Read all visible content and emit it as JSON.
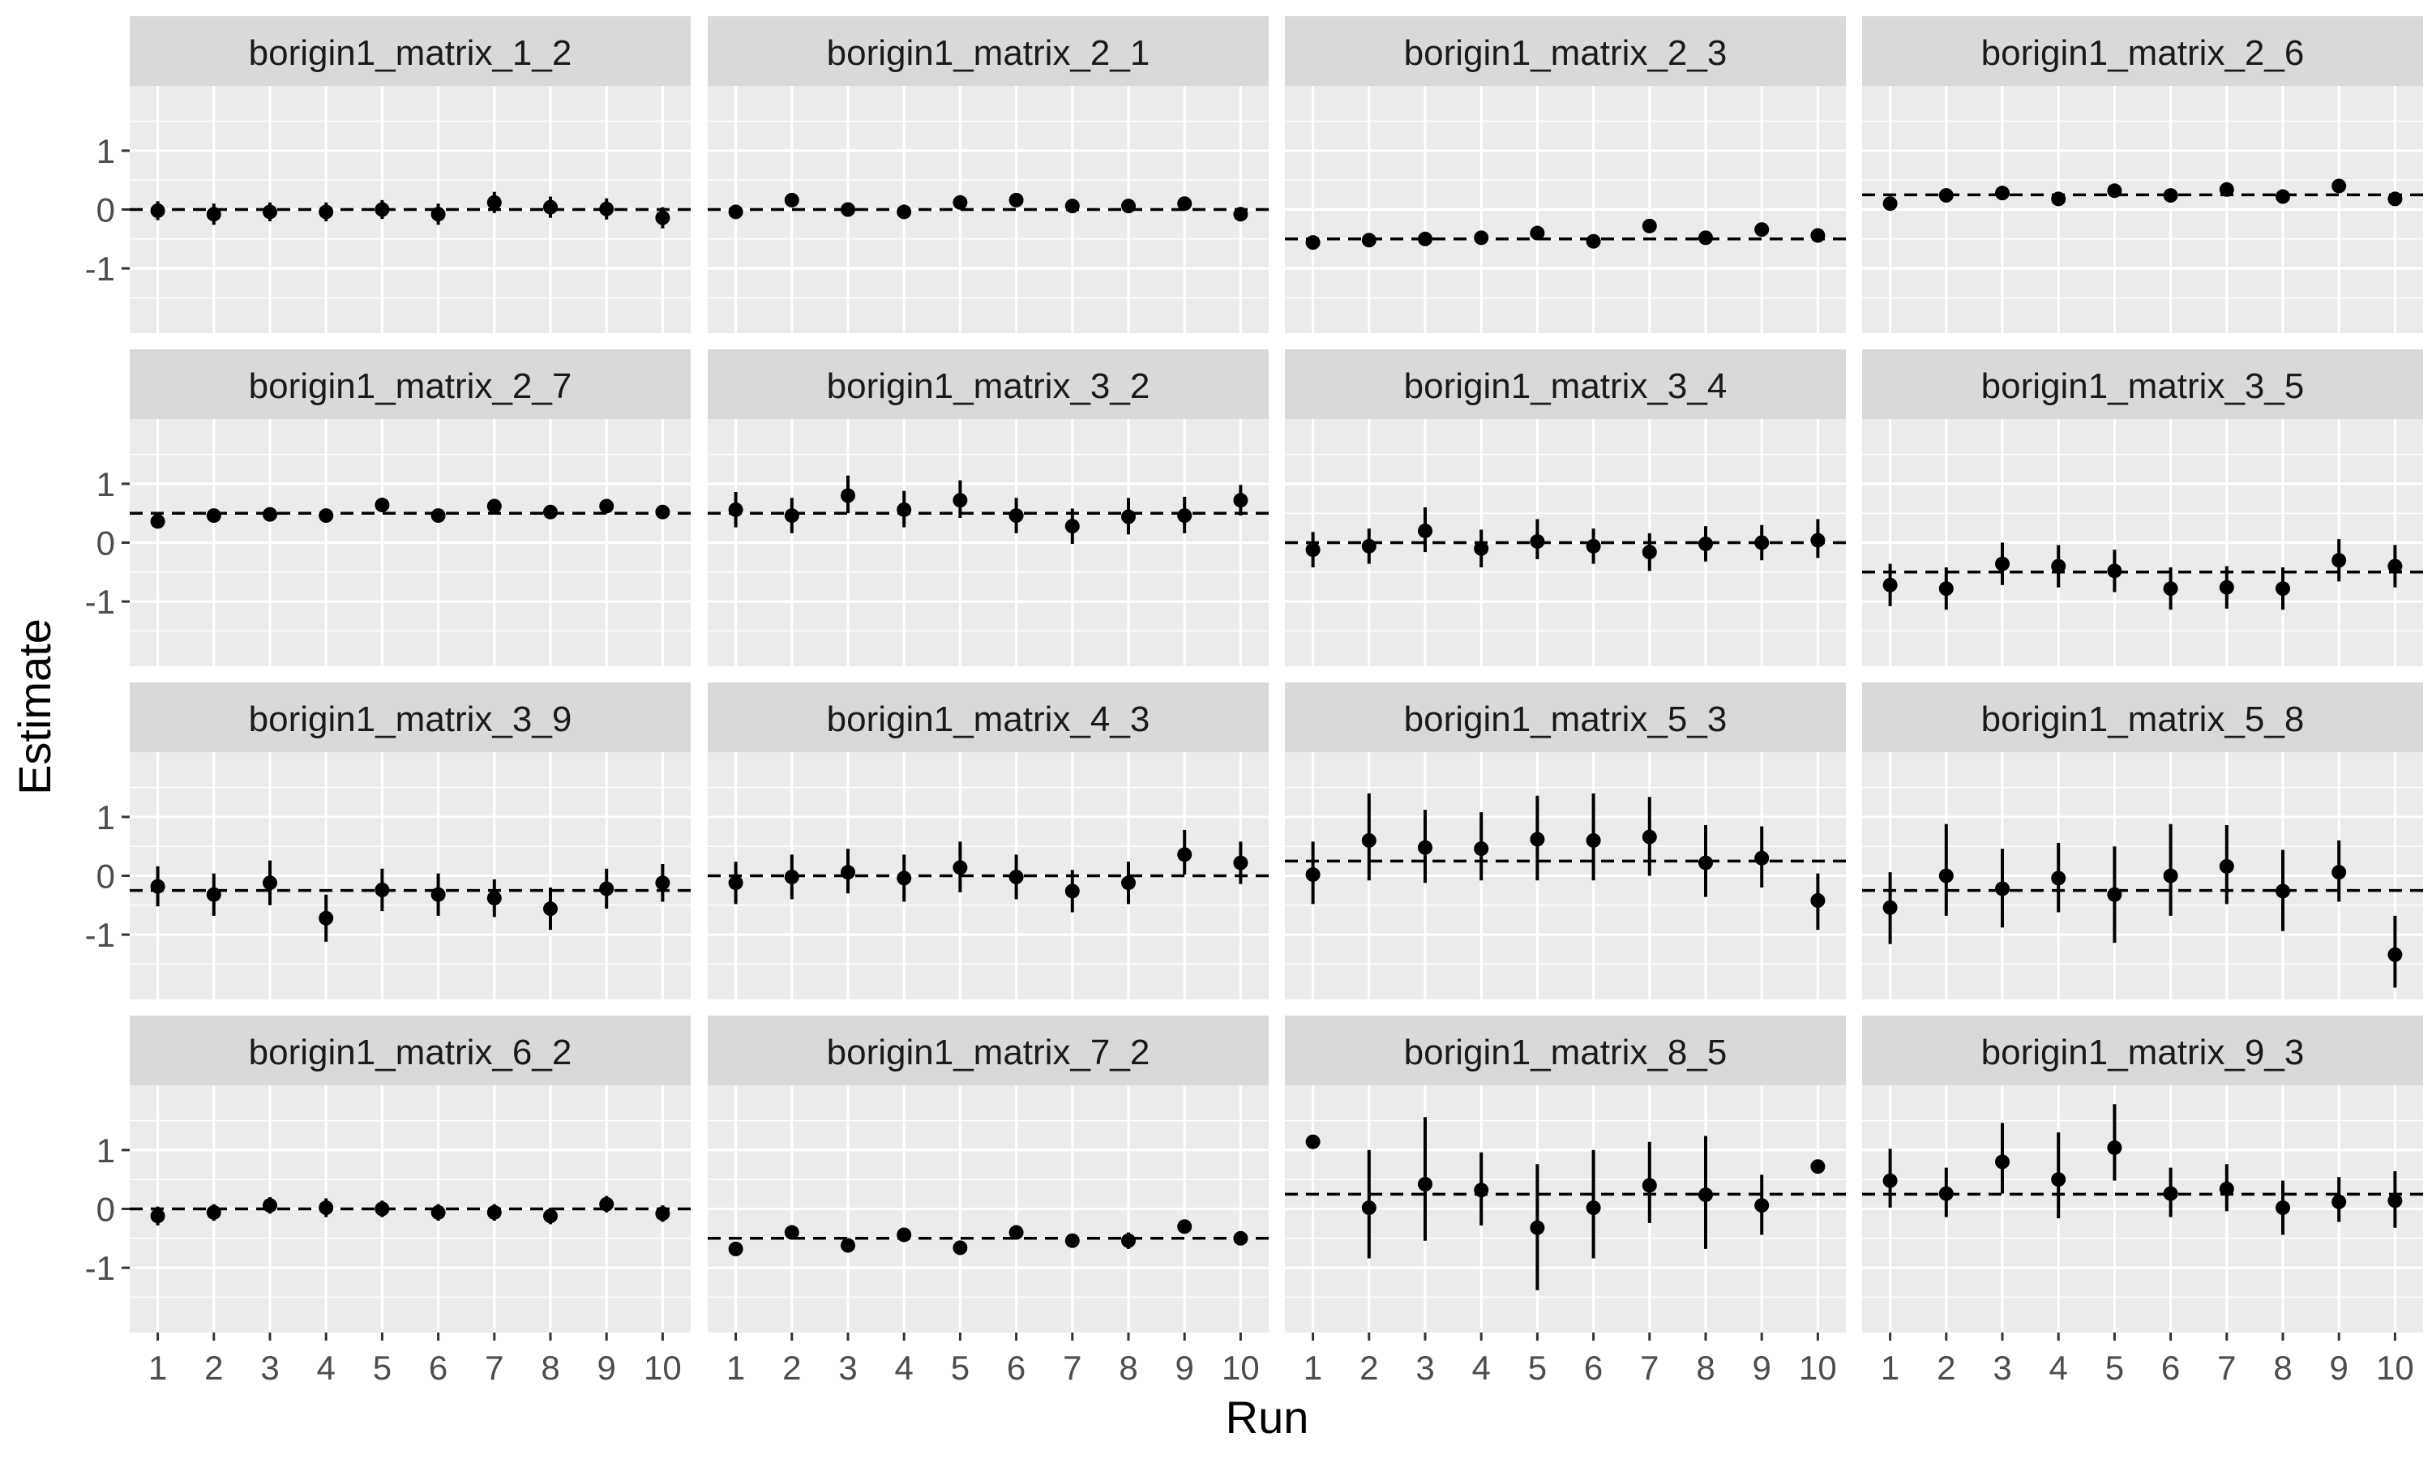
{
  "chart_data": {
    "type": "scatter",
    "layout": "faceted point-range plot with dashed reference lines, 4x4 grid",
    "xlabel": "Run",
    "ylabel": "Estimate",
    "x_ticks": [
      1,
      2,
      3,
      4,
      5,
      6,
      7,
      8,
      9,
      10
    ],
    "y_ticks": [
      1,
      0,
      -1
    ],
    "y_tick_labels": [
      "1",
      "0",
      "-1"
    ],
    "xlim": [
      0.5,
      10.5
    ],
    "ylim": [
      -2.1,
      2.1
    ],
    "grid": true,
    "colors": {
      "panel_background": "#ebebeb",
      "strip_background": "#d9d9d9",
      "grid": "#ffffff",
      "points": "#000000",
      "reference_line": "#000000",
      "text": "#000000",
      "tick_text": "#4d4d4d"
    },
    "facets": [
      {
        "title": "borigin1_matrix_1_2",
        "reference": 0.0,
        "estimates": [
          -0.02,
          -0.08,
          -0.04,
          -0.04,
          0.0,
          -0.08,
          0.12,
          0.04,
          0.01,
          -0.14
        ],
        "lower": [
          -0.18,
          -0.26,
          -0.2,
          -0.2,
          -0.16,
          -0.26,
          -0.06,
          -0.14,
          -0.17,
          -0.32
        ],
        "upper": [
          0.14,
          0.1,
          0.12,
          0.12,
          0.16,
          0.1,
          0.3,
          0.22,
          0.19,
          0.04
        ]
      },
      {
        "title": "borigin1_matrix_2_1",
        "reference": 0.0,
        "estimates": [
          -0.04,
          0.16,
          0.0,
          -0.04,
          0.12,
          0.16,
          0.06,
          0.06,
          0.1,
          -0.08
        ],
        "lower": [
          -0.12,
          0.04,
          -0.1,
          -0.12,
          0.02,
          0.04,
          -0.04,
          -0.04,
          -0.02,
          -0.2
        ],
        "upper": [
          0.04,
          0.28,
          0.1,
          0.04,
          0.22,
          0.28,
          0.16,
          0.16,
          0.22,
          0.04
        ]
      },
      {
        "title": "borigin1_matrix_2_3",
        "reference": -0.5,
        "estimates": [
          -0.56,
          -0.52,
          -0.5,
          -0.48,
          -0.4,
          -0.54,
          -0.28,
          -0.48,
          -0.34,
          -0.44
        ],
        "lower": [
          -0.66,
          -0.62,
          -0.6,
          -0.58,
          -0.52,
          -0.64,
          -0.4,
          -0.58,
          -0.46,
          -0.56
        ],
        "upper": [
          -0.46,
          -0.42,
          -0.4,
          -0.38,
          -0.28,
          -0.44,
          -0.16,
          -0.38,
          -0.22,
          -0.32
        ]
      },
      {
        "title": "borigin1_matrix_2_6",
        "reference": 0.25,
        "estimates": [
          0.1,
          0.24,
          0.28,
          0.18,
          0.32,
          0.24,
          0.34,
          0.22,
          0.4,
          0.18
        ],
        "lower": [
          0.0,
          0.16,
          0.2,
          0.1,
          0.22,
          0.16,
          0.22,
          0.14,
          0.3,
          0.08
        ],
        "upper": [
          0.2,
          0.32,
          0.36,
          0.26,
          0.42,
          0.32,
          0.46,
          0.3,
          0.5,
          0.28
        ]
      },
      {
        "title": "borigin1_matrix_2_7",
        "reference": 0.5,
        "estimates": [
          0.36,
          0.46,
          0.48,
          0.46,
          0.64,
          0.46,
          0.62,
          0.52,
          0.62,
          0.52
        ],
        "lower": [
          0.26,
          0.38,
          0.38,
          0.36,
          0.54,
          0.38,
          0.5,
          0.42,
          0.52,
          0.42
        ],
        "upper": [
          0.46,
          0.54,
          0.58,
          0.56,
          0.74,
          0.54,
          0.74,
          0.62,
          0.72,
          0.62
        ]
      },
      {
        "title": "borigin1_matrix_3_2",
        "reference": 0.5,
        "estimates": [
          0.56,
          0.46,
          0.8,
          0.56,
          0.72,
          0.46,
          0.28,
          0.44,
          0.46,
          0.72
        ],
        "lower": [
          0.26,
          0.16,
          0.5,
          0.26,
          0.42,
          0.16,
          -0.02,
          0.14,
          0.16,
          0.46
        ],
        "upper": [
          0.86,
          0.76,
          1.14,
          0.88,
          1.06,
          0.76,
          0.58,
          0.76,
          0.78,
          0.98
        ]
      },
      {
        "title": "borigin1_matrix_3_4",
        "reference": 0.0,
        "estimates": [
          -0.12,
          -0.06,
          0.2,
          -0.1,
          0.02,
          -0.06,
          -0.16,
          -0.02,
          0.0,
          0.04
        ],
        "lower": [
          -0.42,
          -0.36,
          -0.16,
          -0.42,
          -0.28,
          -0.36,
          -0.48,
          -0.32,
          -0.3,
          -0.26
        ],
        "upper": [
          0.18,
          0.24,
          0.6,
          0.22,
          0.4,
          0.24,
          0.16,
          0.28,
          0.3,
          0.4
        ]
      },
      {
        "title": "borigin1_matrix_3_5",
        "reference": -0.5,
        "estimates": [
          -0.72,
          -0.78,
          -0.36,
          -0.4,
          -0.48,
          -0.78,
          -0.76,
          -0.78,
          -0.3,
          -0.4
        ],
        "lower": [
          -1.08,
          -1.14,
          -0.72,
          -0.76,
          -0.84,
          -1.14,
          -1.12,
          -1.14,
          -0.66,
          -0.76
        ],
        "upper": [
          -0.36,
          -0.42,
          0.0,
          -0.04,
          -0.12,
          -0.42,
          -0.4,
          -0.42,
          0.06,
          -0.04
        ]
      },
      {
        "title": "borigin1_matrix_3_9",
        "reference": -0.25,
        "estimates": [
          -0.18,
          -0.32,
          -0.12,
          -0.72,
          -0.24,
          -0.32,
          -0.38,
          -0.56,
          -0.22,
          -0.12
        ],
        "lower": [
          -0.52,
          -0.68,
          -0.5,
          -1.12,
          -0.6,
          -0.68,
          -0.7,
          -0.92,
          -0.56,
          -0.44
        ],
        "upper": [
          0.16,
          0.04,
          0.26,
          -0.32,
          0.12,
          0.04,
          -0.06,
          -0.2,
          0.12,
          0.2
        ]
      },
      {
        "title": "borigin1_matrix_4_3",
        "reference": 0.0,
        "estimates": [
          -0.12,
          -0.02,
          0.06,
          -0.04,
          0.14,
          -0.02,
          -0.26,
          -0.12,
          0.36,
          0.22
        ],
        "lower": [
          -0.48,
          -0.4,
          -0.3,
          -0.44,
          -0.28,
          -0.4,
          -0.62,
          -0.48,
          0.02,
          -0.14
        ],
        "upper": [
          0.24,
          0.36,
          0.46,
          0.36,
          0.58,
          0.36,
          0.1,
          0.24,
          0.78,
          0.58
        ]
      },
      {
        "title": "borigin1_matrix_5_3",
        "reference": 0.25,
        "estimates": [
          0.02,
          0.6,
          0.48,
          0.46,
          0.62,
          0.6,
          0.66,
          0.22,
          0.3,
          -0.42
        ],
        "lower": [
          -0.48,
          -0.08,
          -0.12,
          -0.08,
          -0.08,
          -0.08,
          0.0,
          -0.36,
          -0.2,
          -0.92
        ],
        "upper": [
          0.58,
          1.4,
          1.12,
          1.08,
          1.36,
          1.4,
          1.34,
          0.86,
          0.84,
          0.04
        ]
      },
      {
        "title": "borigin1_matrix_5_8",
        "reference": -0.25,
        "estimates": [
          -0.54,
          0.0,
          -0.22,
          -0.04,
          -0.32,
          0.0,
          0.16,
          -0.26,
          0.06,
          -1.34
        ],
        "lower": [
          -1.16,
          -0.68,
          -0.88,
          -0.62,
          -1.14,
          -0.68,
          -0.48,
          -0.94,
          -0.44,
          -1.9
        ],
        "upper": [
          0.06,
          0.88,
          0.46,
          0.56,
          0.5,
          0.88,
          0.86,
          0.44,
          0.6,
          -0.68
        ]
      },
      {
        "title": "borigin1_matrix_6_2",
        "reference": 0.0,
        "estimates": [
          -0.12,
          -0.06,
          0.06,
          0.02,
          0.0,
          -0.06,
          -0.06,
          -0.12,
          0.08,
          -0.08
        ],
        "lower": [
          -0.28,
          -0.2,
          -0.08,
          -0.14,
          -0.14,
          -0.2,
          -0.2,
          -0.26,
          -0.06,
          -0.22
        ],
        "upper": [
          0.04,
          0.08,
          0.2,
          0.18,
          0.14,
          0.08,
          0.08,
          0.02,
          0.22,
          0.06
        ]
      },
      {
        "title": "borigin1_matrix_7_2",
        "reference": -0.5,
        "estimates": [
          -0.68,
          -0.4,
          -0.62,
          -0.44,
          -0.66,
          -0.4,
          -0.54,
          -0.54,
          -0.3,
          -0.5
        ],
        "lower": [
          -0.8,
          -0.52,
          -0.74,
          -0.56,
          -0.78,
          -0.52,
          -0.66,
          -0.68,
          -0.42,
          -0.62
        ],
        "upper": [
          -0.56,
          -0.28,
          -0.5,
          -0.32,
          -0.54,
          -0.28,
          -0.42,
          -0.4,
          -0.18,
          -0.38
        ]
      },
      {
        "title": "borigin1_matrix_8_5",
        "reference": 0.25,
        "estimates": [
          1.14,
          0.02,
          0.42,
          0.32,
          -0.32,
          0.02,
          0.4,
          0.24,
          0.06,
          0.72
        ],
        "lower": [
          1.14,
          -0.84,
          -0.54,
          -0.28,
          -1.38,
          -0.84,
          -0.24,
          -0.68,
          -0.44,
          0.72
        ],
        "upper": [
          1.14,
          1.0,
          1.56,
          0.96,
          0.76,
          1.0,
          1.14,
          1.24,
          0.58,
          0.72
        ]
      },
      {
        "title": "borigin1_matrix_9_3",
        "reference": 0.25,
        "estimates": [
          0.48,
          0.26,
          0.8,
          0.5,
          1.04,
          0.26,
          0.34,
          0.02,
          0.12,
          0.14
        ],
        "lower": [
          0.02,
          -0.14,
          0.26,
          -0.16,
          0.48,
          -0.14,
          -0.04,
          -0.44,
          -0.22,
          -0.32
        ],
        "upper": [
          1.02,
          0.7,
          1.46,
          1.3,
          1.78,
          0.7,
          0.76,
          0.48,
          0.54,
          0.64
        ]
      }
    ]
  }
}
